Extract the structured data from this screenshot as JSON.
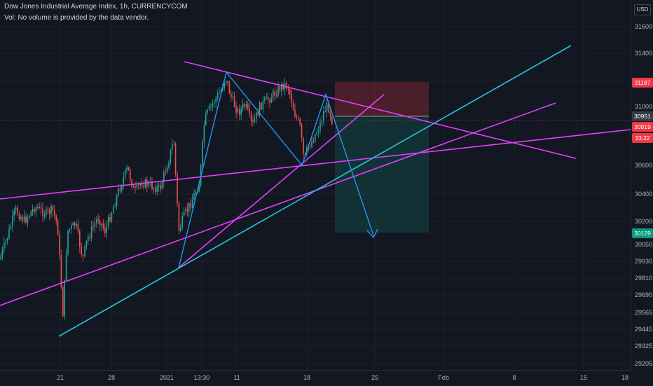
{
  "header": {
    "title": "Dow Jones Industrial Average Index, 1h, CURRENCYCOM",
    "volume_note": "Vol: No volume is provided by the data vendor.",
    "currency_button": "USD"
  },
  "price_axis": {
    "ticks": [
      "31600",
      "31400",
      "31000",
      "30600",
      "30400",
      "30200",
      "30050",
      "29930",
      "29810",
      "29690",
      "29565",
      "29445",
      "29325",
      "29205"
    ],
    "badges": [
      {
        "label": "31187",
        "color": "#f23645",
        "name": "stop-price-badge"
      },
      {
        "label": "30951",
        "color": "#363a45",
        "name": "current-price-badge"
      },
      {
        "label": "30919",
        "color": "#f23645",
        "name": "last-price-badge"
      },
      {
        "label": "33:22",
        "color": "#f23645",
        "name": "countdown-badge"
      },
      {
        "label": "30129",
        "color": "#089981",
        "name": "target-price-badge"
      }
    ]
  },
  "time_axis": {
    "ticks": [
      "21",
      "28",
      "2021",
      "13:30",
      "11",
      "18",
      "25",
      "Feb",
      "8",
      "15",
      "18"
    ]
  },
  "colors": {
    "background": "#131722",
    "trendline_magenta": "#e040fb",
    "trendline_cyan": "#26c6da",
    "pattern_blue": "#2196f3",
    "candle_up": "#26a69a",
    "candle_down": "#ef5350",
    "stop_zone": "#f23645",
    "target_zone": "#089981"
  }
}
